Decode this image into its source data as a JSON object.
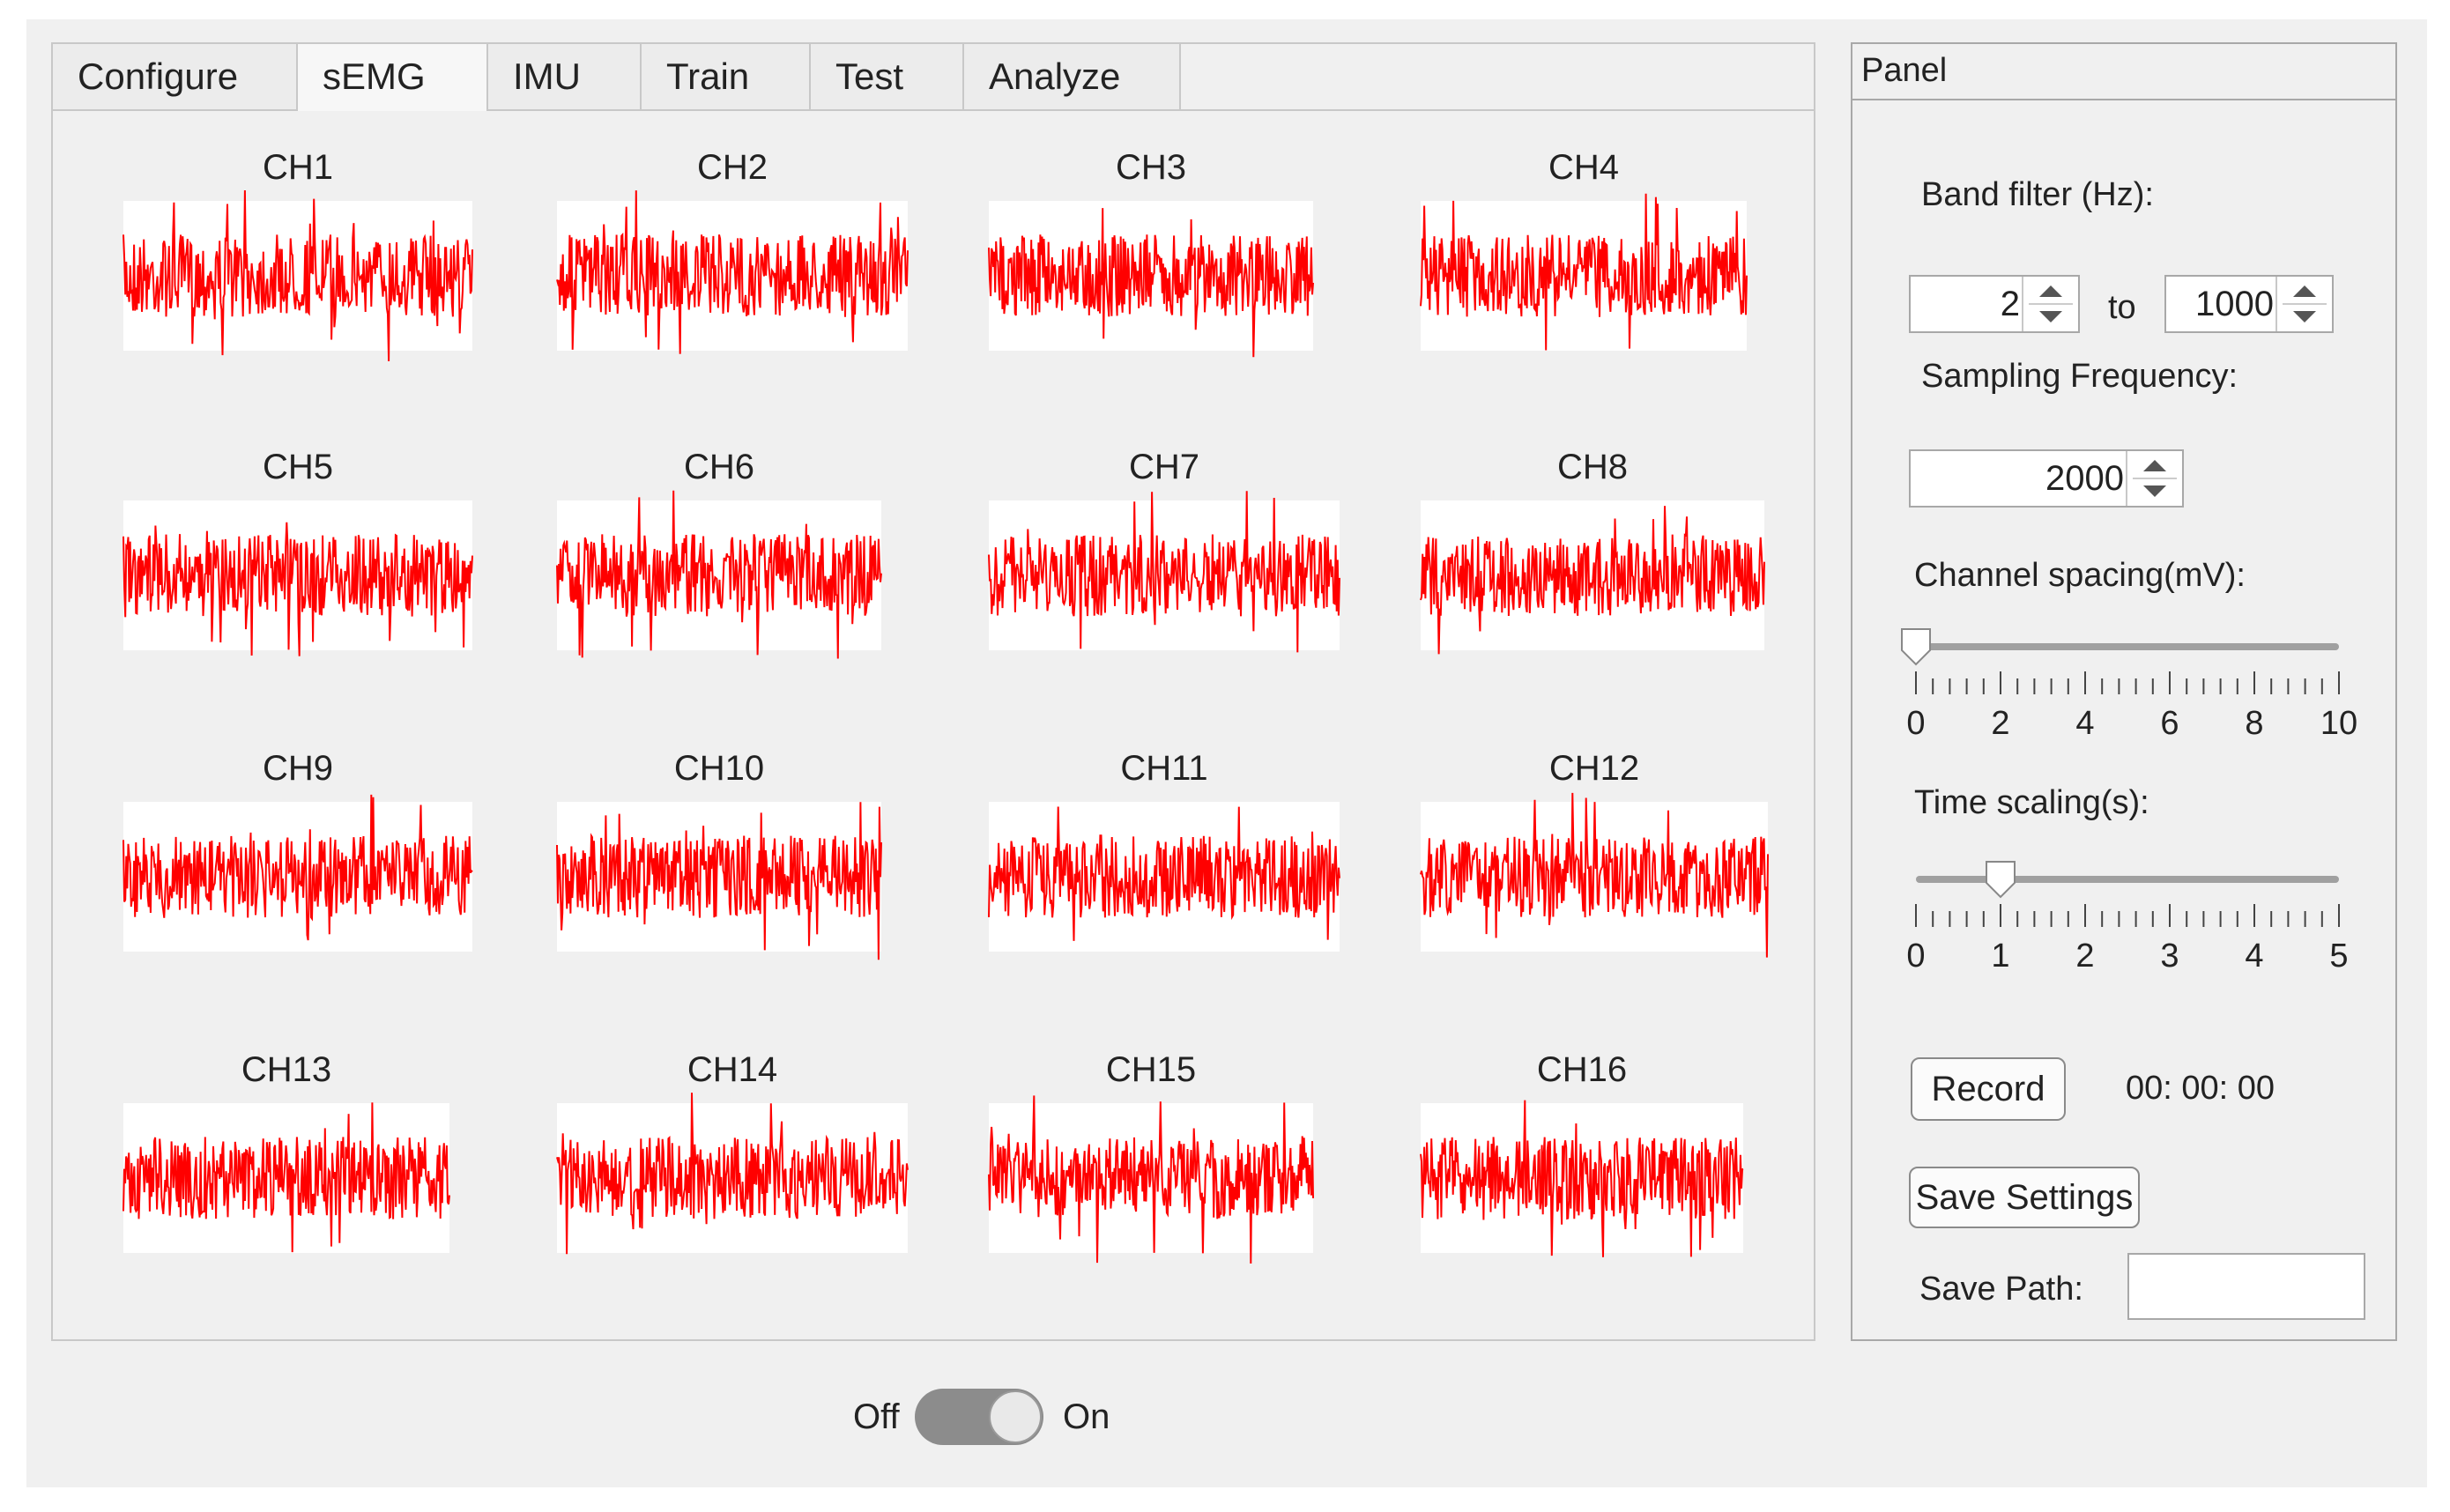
{
  "tabs": [
    {
      "label": "Configure",
      "active": false
    },
    {
      "label": "sEMG",
      "active": true
    },
    {
      "label": "IMU",
      "active": false
    },
    {
      "label": "Train",
      "active": false
    },
    {
      "label": "Test",
      "active": false
    },
    {
      "label": "Analyze",
      "active": false
    }
  ],
  "channels": [
    "CH1",
    "CH2",
    "CH3",
    "CH4",
    "CH5",
    "CH6",
    "CH7",
    "CH8",
    "CH9",
    "CH10",
    "CH11",
    "CH12",
    "CH13",
    "CH14",
    "CH15",
    "CH16"
  ],
  "signal_color": "#ff0000",
  "panel": {
    "title": "Panel",
    "band_filter_label": "Band filter (Hz):",
    "band_low": "2",
    "band_to": "to",
    "band_high": "1000",
    "sampling_label": "Sampling Frequency:",
    "sampling_value": "2000",
    "channel_spacing_label": "Channel spacing(mV):",
    "channel_spacing_value": 0,
    "channel_spacing_ticks": [
      "0",
      "2",
      "4",
      "6",
      "8",
      "10"
    ],
    "time_scaling_label": "Time scaling(s):",
    "time_scaling_value": 1,
    "time_scaling_ticks": [
      "0",
      "1",
      "2",
      "3",
      "4",
      "5"
    ],
    "record_label": "Record",
    "timer": "00:  00:  00",
    "save_settings_label": "Save Settings",
    "save_path_label": "Save Path:",
    "save_path_value": ""
  },
  "toggle": {
    "off_label": "Off",
    "on_label": "On",
    "state": "off"
  }
}
